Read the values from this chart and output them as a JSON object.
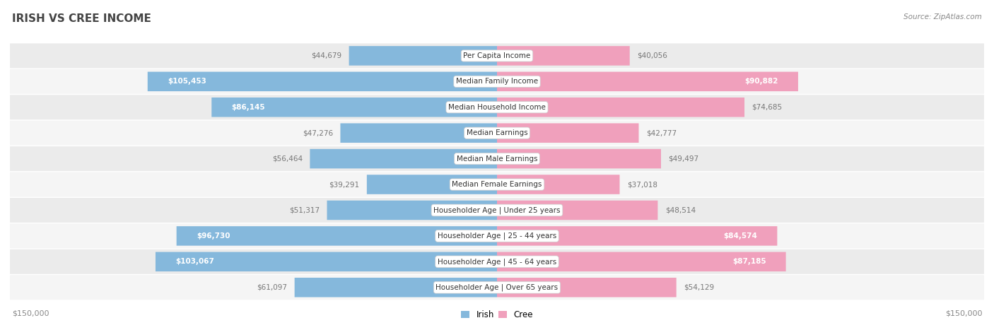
{
  "title": "IRISH VS CREE INCOME",
  "source": "Source: ZipAtlas.com",
  "categories": [
    "Per Capita Income",
    "Median Family Income",
    "Median Household Income",
    "Median Earnings",
    "Median Male Earnings",
    "Median Female Earnings",
    "Householder Age | Under 25 years",
    "Householder Age | 25 - 44 years",
    "Householder Age | 45 - 64 years",
    "Householder Age | Over 65 years"
  ],
  "irish_values": [
    44679,
    105453,
    86145,
    47276,
    56464,
    39291,
    51317,
    96730,
    103067,
    61097
  ],
  "cree_values": [
    40056,
    90882,
    74685,
    42777,
    49497,
    37018,
    48514,
    84574,
    87185,
    54129
  ],
  "irish_labels": [
    "$44,679",
    "$105,453",
    "$86,145",
    "$47,276",
    "$56,464",
    "$39,291",
    "$51,317",
    "$96,730",
    "$103,067",
    "$61,097"
  ],
  "cree_labels": [
    "$40,056",
    "$90,882",
    "$74,685",
    "$42,777",
    "$49,497",
    "$37,018",
    "$48,514",
    "$84,574",
    "$87,185",
    "$54,129"
  ],
  "irish_color": "#85B8DC",
  "cree_color": "#F0A0BC",
  "cree_color_bright": "#E8608A",
  "irish_color_bright": "#5090C8",
  "max_value": 150000,
  "bg_color": "#FFFFFF",
  "row_bg_even": "#EBEBEB",
  "row_bg_odd": "#F5F5F5",
  "xlabel_left": "$150,000",
  "xlabel_right": "$150,000",
  "title_fontsize": 11,
  "label_fontsize": 7.5,
  "category_fontsize": 7.5,
  "axis_fontsize": 8,
  "source_fontsize": 7.5,
  "irish_large_threshold": 75000,
  "cree_large_threshold": 75000
}
